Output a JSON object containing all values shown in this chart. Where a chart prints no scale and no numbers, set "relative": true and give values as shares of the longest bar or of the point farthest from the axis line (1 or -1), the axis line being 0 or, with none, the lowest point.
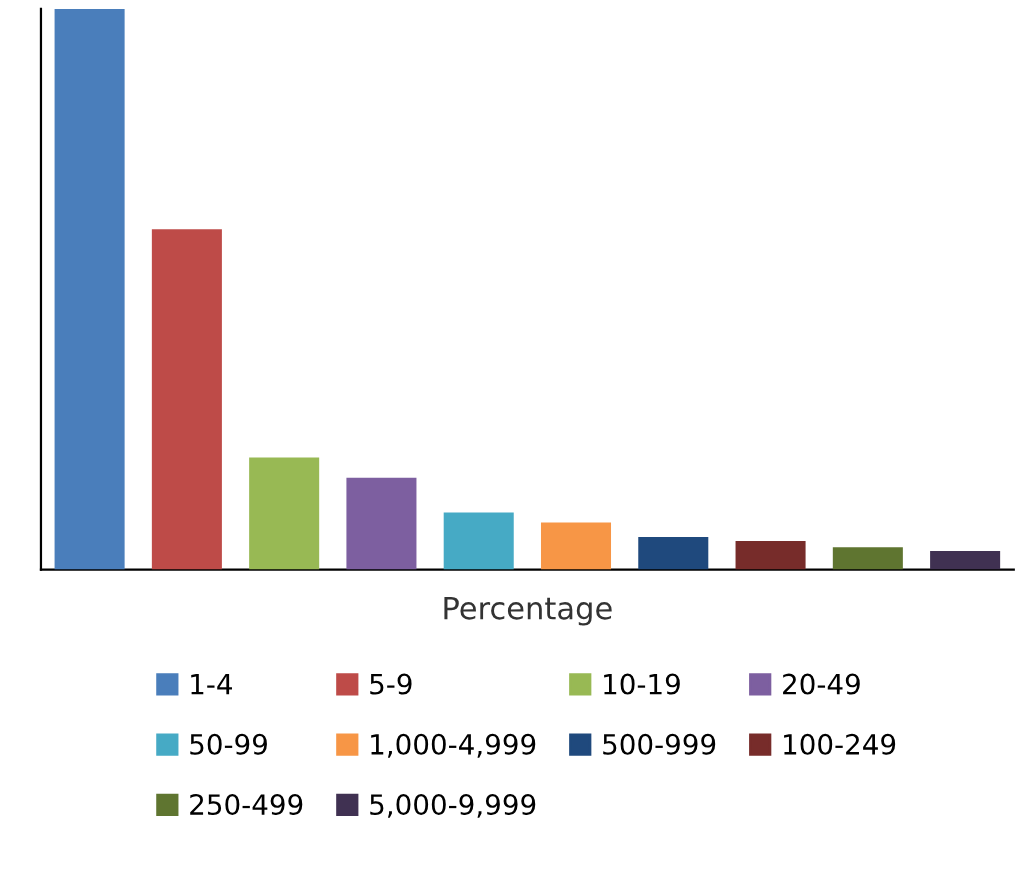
{
  "chart_data": {
    "type": "bar",
    "relative": true,
    "stacked": true,
    "xlabel": "Percentage",
    "categories": [
      null,
      null,
      null,
      null,
      null,
      null,
      null,
      null,
      null,
      null
    ],
    "legend": "bottom",
    "grid": false,
    "series": [
      {
        "name": "1-4",
        "color": "#4a7ebb",
        "values": [
          1,
          null,
          null,
          null,
          null,
          null,
          null,
          null,
          null,
          null
        ]
      },
      {
        "name": "5-9",
        "color": "#be4b48",
        "values": [
          null,
          0.607,
          null,
          null,
          null,
          null,
          null,
          null,
          null,
          null
        ]
      },
      {
        "name": "10-19",
        "color": "#98b954",
        "values": [
          null,
          null,
          0.2,
          null,
          null,
          null,
          null,
          null,
          null,
          null
        ]
      },
      {
        "name": "20-49",
        "color": "#7d5fa0",
        "values": [
          null,
          null,
          null,
          0.164,
          null,
          null,
          null,
          null,
          null,
          null
        ]
      },
      {
        "name": "50-99",
        "color": "#46aac5",
        "values": [
          null,
          null,
          null,
          null,
          0.102,
          null,
          null,
          null,
          null,
          null
        ]
      },
      {
        "name": "1,000-4,999",
        "color": "#f79646",
        "values": [
          null,
          null,
          null,
          null,
          null,
          0.084,
          null,
          null,
          null,
          null
        ]
      },
      {
        "name": "500-999",
        "color": "#1f497d",
        "values": [
          null,
          null,
          null,
          null,
          null,
          null,
          0.058,
          null,
          null,
          null
        ]
      },
      {
        "name": "100-249",
        "color": "#772c2a",
        "values": [
          null,
          null,
          null,
          null,
          null,
          null,
          null,
          0.051,
          null,
          null
        ]
      },
      {
        "name": "250-499",
        "color": "#5f7530",
        "values": [
          null,
          null,
          null,
          null,
          null,
          null,
          null,
          null,
          0.04,
          null
        ]
      },
      {
        "name": "5,000-9,999",
        "color": "#403152",
        "values": [
          null,
          null,
          null,
          null,
          null,
          null,
          null,
          null,
          null,
          0.033
        ]
      }
    ]
  }
}
